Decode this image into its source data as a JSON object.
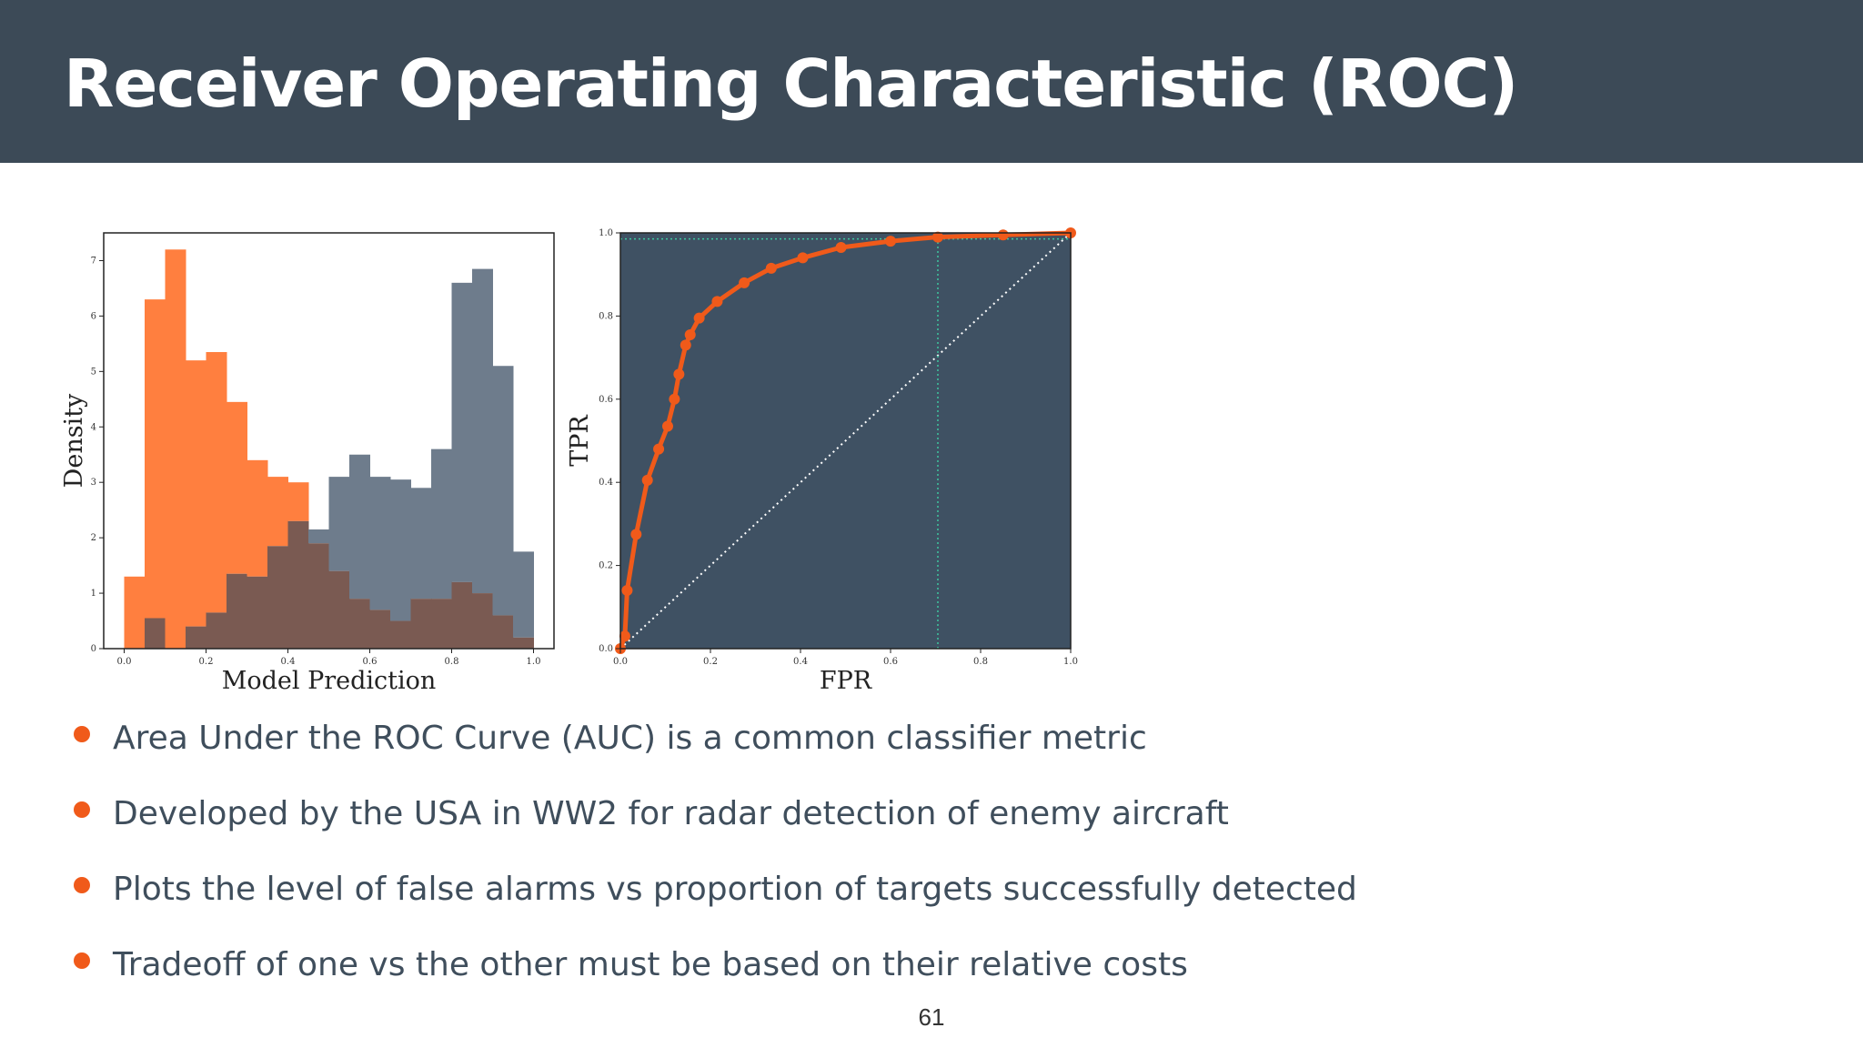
{
  "slide": {
    "title": "Receiver Operating Characteristic (ROC)",
    "page_number": "61",
    "bullets": [
      "Area Under the ROC Curve (AUC) is a common classifier metric",
      "Developed by the USA in WW2 for radar detection of enemy aircraft",
      "Plots the level of false alarms vs proportion of targets successfully detected",
      "Tradeoff of one vs the other must be based on their relative costs"
    ],
    "colors": {
      "header_bg": "#3c4a57",
      "accent_orange": "#f05a1a",
      "bullet_text": "#3f4e5c",
      "hist_orange": "#ff7f3f",
      "hist_slate": "#6e7c8c",
      "roc_bg": "#3f5163"
    }
  },
  "chart_data": [
    {
      "type": "bar",
      "xlabel": "Model Prediction",
      "ylabel": "Density",
      "xlim": [
        -0.05,
        1.05
      ],
      "ylim": [
        0,
        7.5
      ],
      "xticks": [
        "0.0",
        "0.2",
        "0.4",
        "0.6",
        "0.8",
        "1.0"
      ],
      "yticks": [
        "0",
        "1",
        "2",
        "3",
        "4",
        "5",
        "6",
        "7"
      ],
      "bin_edges": [
        0.0,
        0.05,
        0.1,
        0.15,
        0.2,
        0.25,
        0.3,
        0.35,
        0.4,
        0.45,
        0.5,
        0.55,
        0.6,
        0.65,
        0.7,
        0.75,
        0.8,
        0.85,
        0.9,
        0.95,
        1.0
      ],
      "series": [
        {
          "values": [
            1.3,
            6.3,
            7.2,
            5.2,
            5.35,
            4.45,
            3.4,
            3.1,
            3.0,
            1.9,
            1.4,
            0.9,
            0.7,
            0.5,
            0.9,
            0.9,
            1.2,
            1.0,
            0.6,
            0.2
          ]
        },
        {
          "values": [
            0.0,
            0.55,
            0.0,
            0.4,
            0.65,
            1.35,
            1.3,
            1.85,
            2.3,
            2.15,
            3.1,
            3.5,
            3.1,
            3.05,
            2.9,
            3.6,
            6.6,
            6.85,
            5.1,
            1.75
          ]
        }
      ]
    },
    {
      "type": "line",
      "xlabel": "FPR",
      "ylabel": "TPR",
      "xlim": [
        0,
        1
      ],
      "ylim": [
        0,
        1
      ],
      "xticks": [
        "0.0",
        "0.2",
        "0.4",
        "0.6",
        "0.8",
        "1.0"
      ],
      "yticks": [
        "0.0",
        "0.2",
        "0.4",
        "0.6",
        "0.8",
        "1.0"
      ],
      "series": [
        {
          "x": [
            0.0,
            0.01,
            0.015,
            0.035,
            0.06,
            0.085,
            0.105,
            0.12,
            0.13,
            0.145,
            0.155,
            0.175,
            0.215,
            0.275,
            0.335,
            0.405,
            0.49,
            0.6,
            0.705,
            0.85,
            1.0
          ],
          "y": [
            0.0,
            0.03,
            0.14,
            0.275,
            0.405,
            0.48,
            0.535,
            0.6,
            0.66,
            0.73,
            0.755,
            0.795,
            0.835,
            0.88,
            0.915,
            0.94,
            0.965,
            0.98,
            0.99,
            0.995,
            1.0
          ]
        }
      ],
      "diagonal_reference": {
        "from": [
          0,
          0
        ],
        "to": [
          1,
          1
        ],
        "style": "dotted"
      },
      "threshold_marker": {
        "fpr": 0.705,
        "tpr": 0.99,
        "style": "dotted"
      }
    }
  ]
}
